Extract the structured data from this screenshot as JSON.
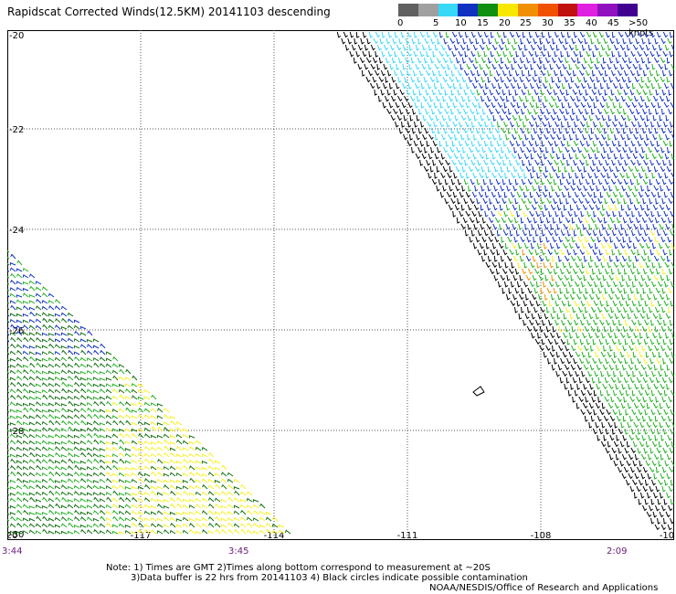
{
  "title": "Rapidscat Corrected Winds(12.5KM) 20141103 descending",
  "legend": {
    "labels": [
      "0",
      "5",
      "10",
      "15",
      "20",
      "25",
      "30",
      "35",
      "40",
      "45",
      ">50 knots"
    ],
    "colors": [
      "#606060",
      "#a0a0a0",
      "#38d8f8",
      "#1030c0",
      "#109010",
      "#f8e800",
      "#f09000",
      "#f05000",
      "#c01010",
      "#e020e0",
      "#9010c0",
      "#400090"
    ]
  },
  "axes": {
    "lon_ticks": [
      "-120",
      "-117",
      "-114",
      "-111",
      "-108",
      "-10"
    ],
    "lat_ticks": [
      "-20",
      "-22",
      "-24",
      "-26",
      "-28",
      "-30"
    ]
  },
  "times": {
    "left": "3:44",
    "middle": "3:45",
    "right": "2:09"
  },
  "notes": {
    "line1": "Note: 1) Times are GMT 2)Times along bottom correspond to measurement at ~20S",
    "line2": "3)Data buffer is 22 hrs from 20141103 4) Black circles indicate possible contamination",
    "line3": "NOAA/NESDIS/Office of Research and Applications"
  },
  "colors": {
    "black": "#000000",
    "cyan": "#38d8f8",
    "blue": "#1030c0",
    "green": "#20b020",
    "darkgreen": "#107010",
    "yellow": "#f8f020",
    "orange": "#f09000",
    "grid": "#555555",
    "time": "#6a1b7a"
  }
}
